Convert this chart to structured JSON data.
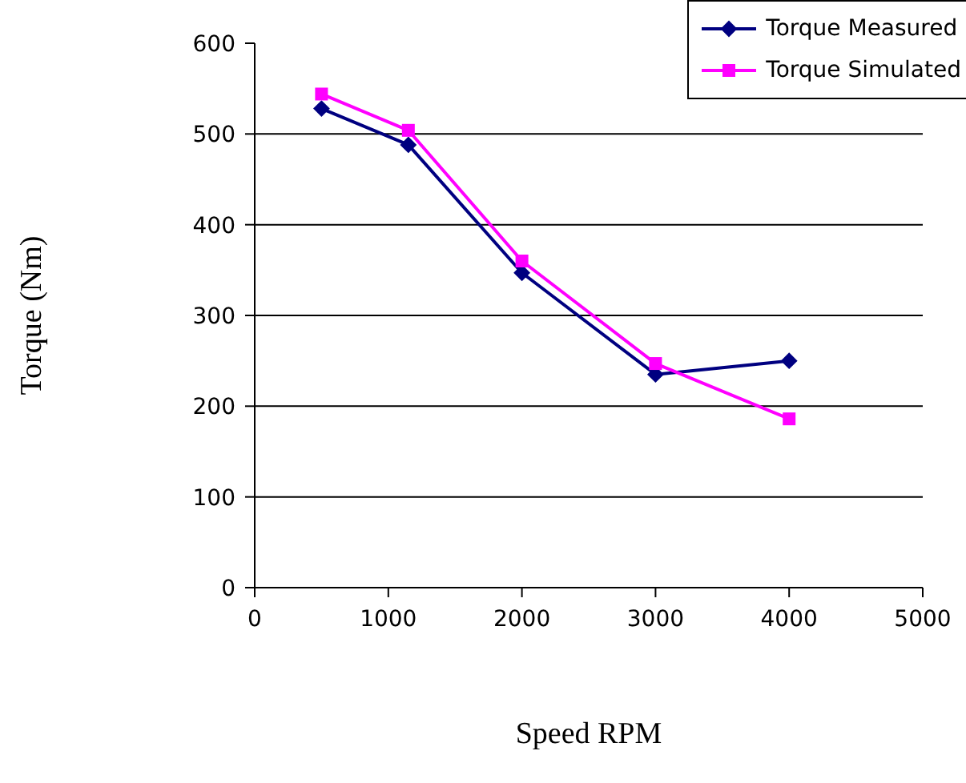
{
  "chart_data": {
    "type": "line",
    "xlabel": "Speed RPM",
    "ylabel": "Torque (Nm)",
    "x": [
      500,
      1150,
      2000,
      3000,
      4000
    ],
    "series": [
      {
        "name": "Torque Measured",
        "color": "#000080",
        "marker": "diamond",
        "values": [
          528,
          488,
          347,
          235,
          250
        ]
      },
      {
        "name": "Torque Simulated",
        "color": "#ff00ff",
        "marker": "square",
        "values": [
          544,
          504,
          360,
          247,
          186
        ]
      }
    ],
    "xlim": [
      0,
      5000
    ],
    "xticks": [
      0,
      1000,
      2000,
      3000,
      4000,
      5000
    ],
    "ylim": [
      0,
      600
    ],
    "yticks": [
      0,
      100,
      200,
      300,
      400,
      500,
      600
    ],
    "grid": "y",
    "legend": "top right"
  }
}
